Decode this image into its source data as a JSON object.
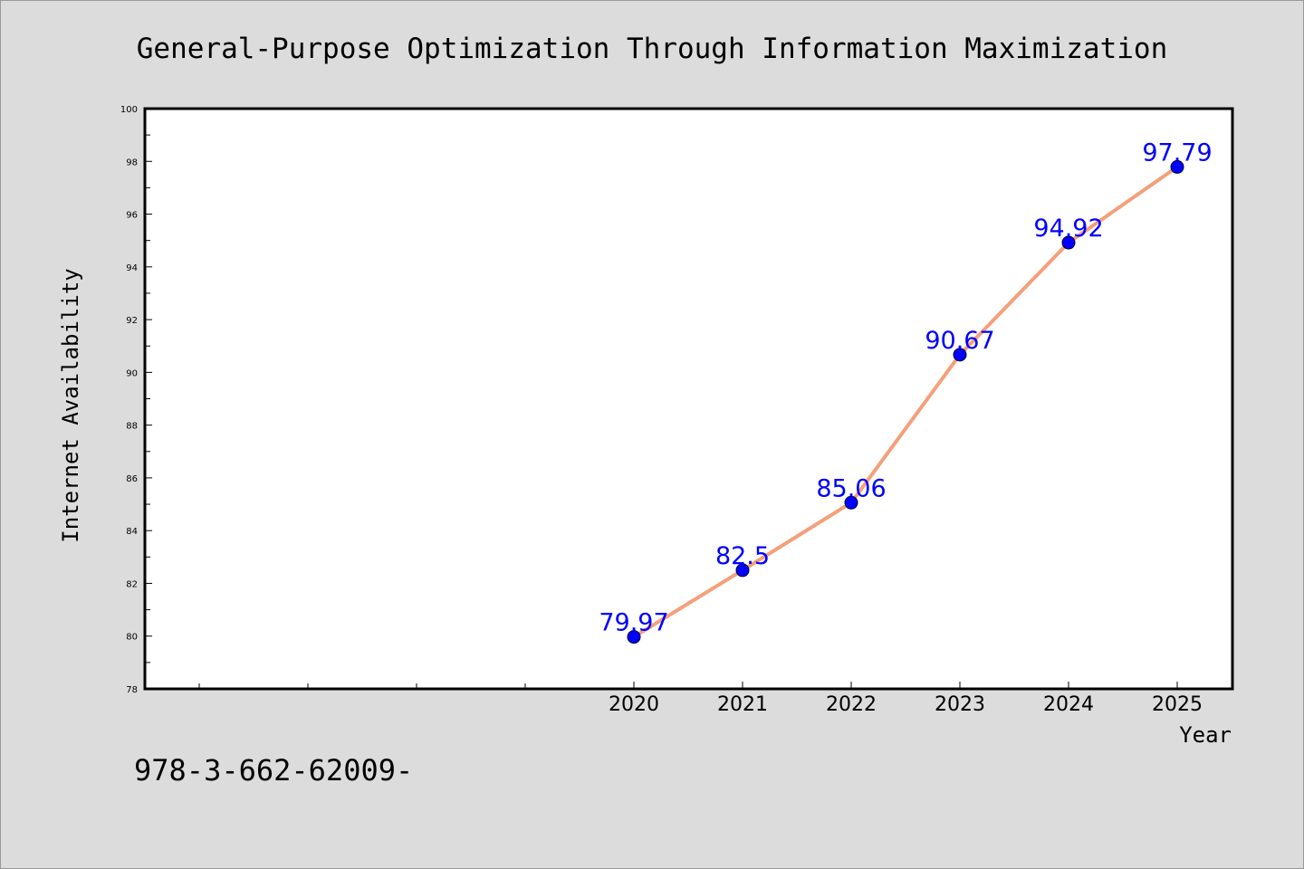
{
  "footer": {
    "text": "978-3-662-62009-"
  },
  "colors": {
    "background": "#dcdcdc",
    "plot_background": "#ffffff",
    "line": "#f4a07a",
    "marker": "#0000ff",
    "label": "#0000ff"
  },
  "chart_data": {
    "type": "line",
    "title": "General-Purpose Optimization Through Information Maximization",
    "xlabel": "Year",
    "ylabel": "Internet Availability",
    "x": [
      "2020",
      "2021",
      "2022",
      "2023",
      "2024",
      "2025"
    ],
    "series": [
      {
        "values": [
          79.97,
          82.5,
          85.06,
          90.67,
          94.92,
          97.79
        ],
        "labels": [
          "79.97",
          "82.5",
          "85.06",
          "90.67",
          "94.92",
          "97.79"
        ]
      }
    ],
    "ylim": [
      78,
      100
    ],
    "yticks": [
      "78",
      "80",
      "82",
      "84",
      "86",
      "88",
      "90",
      "92",
      "94",
      "96",
      "98",
      "100"
    ],
    "grid": false,
    "legend": "none"
  }
}
